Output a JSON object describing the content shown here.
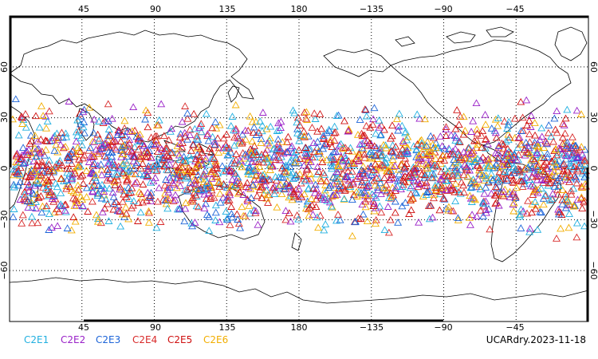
{
  "map": {
    "projection": "cylindrical-equidistant",
    "lon_center_deg": 180,
    "lon_ticks_top": [
      "45",
      "90",
      "135",
      "180",
      "−135",
      "−90",
      "−45"
    ],
    "lon_ticks_bottom": [
      "45",
      "90",
      "135",
      "180",
      "−135",
      "−90",
      "−45"
    ],
    "lat_ticks_left": [
      "60",
      "30",
      "0",
      "−30",
      "−60"
    ],
    "lat_ticks_right": [
      "60",
      "30",
      "0",
      "−30",
      "−60"
    ],
    "grid": true,
    "coastlines": true,
    "marker_shape": "triangle-outline",
    "observation_lat_range_deg": [
      -45,
      45
    ],
    "stamp": "UCARdry.2023-11-18"
  },
  "legend": {
    "placement": "bottom-left",
    "items": [
      {
        "label": "C2E1",
        "color": "#22b0e0"
      },
      {
        "label": "C2E2",
        "color": "#9a22c8"
      },
      {
        "label": "C2E3",
        "color": "#1c64d8"
      },
      {
        "label": "C2E4",
        "color": "#d82a2a"
      },
      {
        "label": "C2E5",
        "color": "#cf1010"
      },
      {
        "label": "C2E6",
        "color": "#f2ae00"
      }
    ]
  }
}
